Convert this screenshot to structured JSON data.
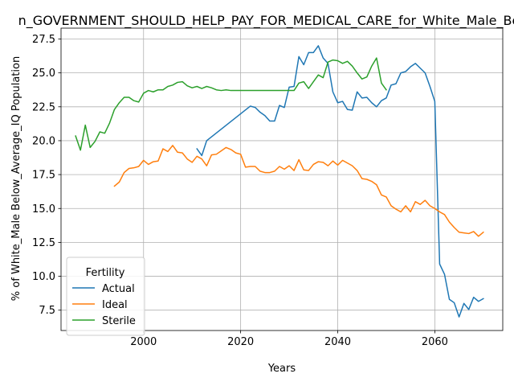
{
  "chart_data": {
    "type": "line",
    "title": "n_GOVERNMENT_SHOULD_HELP_PAY_FOR_MEDICAL_CARE_for_White_Male_Be",
    "xlabel": "Years",
    "ylabel": "% of White_Male Below_Average_IQ Population",
    "xlim": [
      1983,
      2074
    ],
    "ylim": [
      6.0,
      28.3
    ],
    "xticks": [
      2000,
      2020,
      2040,
      2060
    ],
    "yticks": [
      7.5,
      10.0,
      12.5,
      15.0,
      17.5,
      20.0,
      22.5,
      25.0,
      27.5
    ],
    "xtick_labels": [
      "2000",
      "2020",
      "2040",
      "2060"
    ],
    "ytick_labels": [
      "7.5",
      "10.0",
      "12.5",
      "15.0",
      "17.5",
      "20.0",
      "22.5",
      "25.0",
      "27.5"
    ],
    "grid": true,
    "legend": {
      "title": "Fertility",
      "position": "lower-left"
    },
    "series": [
      {
        "name": "Actual",
        "color": "#1f77b4",
        "x": [
          2011,
          2012,
          2013,
          2022,
          2023,
          2024,
          2025,
          2026,
          2027,
          2028,
          2029,
          2030,
          2031,
          2032,
          2033,
          2034,
          2035,
          2036,
          2037,
          2038,
          2039,
          2040,
          2041,
          2042,
          2043,
          2044,
          2045,
          2046,
          2047,
          2048,
          2049,
          2050,
          2051,
          2052,
          2053,
          2054,
          2055,
          2056,
          2057,
          2058,
          2059,
          2060,
          2061,
          2062,
          2063,
          2064,
          2065,
          2066,
          2067,
          2068,
          2069,
          2070
        ],
        "y": [
          19.4,
          18.9,
          20.0,
          22.55,
          22.45,
          22.1,
          21.85,
          21.45,
          21.45,
          22.6,
          22.45,
          23.95,
          24.0,
          26.2,
          25.6,
          26.5,
          26.5,
          27.0,
          26.1,
          25.7,
          23.6,
          22.8,
          22.9,
          22.3,
          22.25,
          23.6,
          23.15,
          23.2,
          22.8,
          22.5,
          22.95,
          23.15,
          24.1,
          24.2,
          25.0,
          25.1,
          25.45,
          25.7,
          25.35,
          25.0,
          24.0,
          22.9,
          10.9,
          10.15,
          8.3,
          8.05,
          7.0,
          8.0,
          7.55,
          8.45,
          8.15,
          8.35
        ]
      },
      {
        "name": "Ideal",
        "color": "#ff7f0e",
        "x": [
          1994,
          1995,
          1996,
          1997,
          1998,
          1999,
          2000,
          2001,
          2002,
          2003,
          2004,
          2005,
          2006,
          2007,
          2008,
          2009,
          2010,
          2011,
          2012,
          2013,
          2014,
          2015,
          2016,
          2017,
          2018,
          2019,
          2020,
          2021,
          2022,
          2023,
          2024,
          2025,
          2026,
          2027,
          2028,
          2029,
          2030,
          2031,
          2032,
          2033,
          2034,
          2035,
          2036,
          2037,
          2038,
          2039,
          2040,
          2041,
          2042,
          2043,
          2044,
          2045,
          2046,
          2047,
          2048,
          2049,
          2050,
          2051,
          2052,
          2053,
          2054,
          2055,
          2056,
          2057,
          2058,
          2059,
          2060,
          2061,
          2062,
          2063,
          2064,
          2065,
          2066,
          2067,
          2068,
          2069,
          2070
        ],
        "y": [
          16.65,
          16.95,
          17.65,
          17.95,
          18.0,
          18.1,
          18.55,
          18.25,
          18.45,
          18.5,
          19.4,
          19.2,
          19.65,
          19.15,
          19.1,
          18.65,
          18.4,
          18.85,
          18.65,
          18.15,
          18.95,
          19.0,
          19.25,
          19.5,
          19.35,
          19.1,
          19.0,
          18.05,
          18.1,
          18.1,
          17.75,
          17.65,
          17.65,
          17.75,
          18.1,
          17.9,
          18.15,
          17.8,
          18.6,
          17.85,
          17.8,
          18.25,
          18.45,
          18.4,
          18.15,
          18.5,
          18.2,
          18.55,
          18.35,
          18.15,
          17.8,
          17.2,
          17.15,
          17.0,
          16.75,
          16.0,
          15.85,
          15.2,
          14.95,
          14.75,
          15.2,
          14.75,
          15.5,
          15.3,
          15.6,
          15.2,
          15.0,
          14.75,
          14.55,
          14.0,
          13.6,
          13.25,
          13.2,
          13.15,
          13.3,
          12.95,
          13.25
        ]
      },
      {
        "name": "Sterile",
        "color": "#2ca02c",
        "x": [
          1986,
          1987,
          1988,
          1989,
          1990,
          1991,
          1992,
          1993,
          1994,
          1995,
          1996,
          1997,
          1998,
          1999,
          2000,
          2001,
          2002,
          2003,
          2004,
          2005,
          2006,
          2007,
          2008,
          2009,
          2010,
          2011,
          2012,
          2013,
          2014,
          2015,
          2016,
          2017,
          2018,
          2019,
          2020,
          2030,
          2031,
          2032,
          2033,
          2034,
          2035,
          2036,
          2037,
          2038,
          2039,
          2040,
          2041,
          2042,
          2043,
          2044,
          2045,
          2046,
          2047,
          2048,
          2049,
          2050
        ],
        "y": [
          20.35,
          19.3,
          21.15,
          19.5,
          19.95,
          20.65,
          20.55,
          21.3,
          22.3,
          22.8,
          23.2,
          23.2,
          22.95,
          22.85,
          23.5,
          23.7,
          23.6,
          23.75,
          23.75,
          24.0,
          24.1,
          24.3,
          24.35,
          24.05,
          23.9,
          24.0,
          23.85,
          24.0,
          23.9,
          23.75,
          23.7,
          23.75,
          23.7,
          23.7,
          23.7,
          23.7,
          23.7,
          24.25,
          24.35,
          23.85,
          24.35,
          24.85,
          24.65,
          25.8,
          25.95,
          25.9,
          25.7,
          25.85,
          25.5,
          25.0,
          24.55,
          24.7,
          25.5,
          26.1,
          24.25,
          23.75
        ]
      }
    ]
  }
}
